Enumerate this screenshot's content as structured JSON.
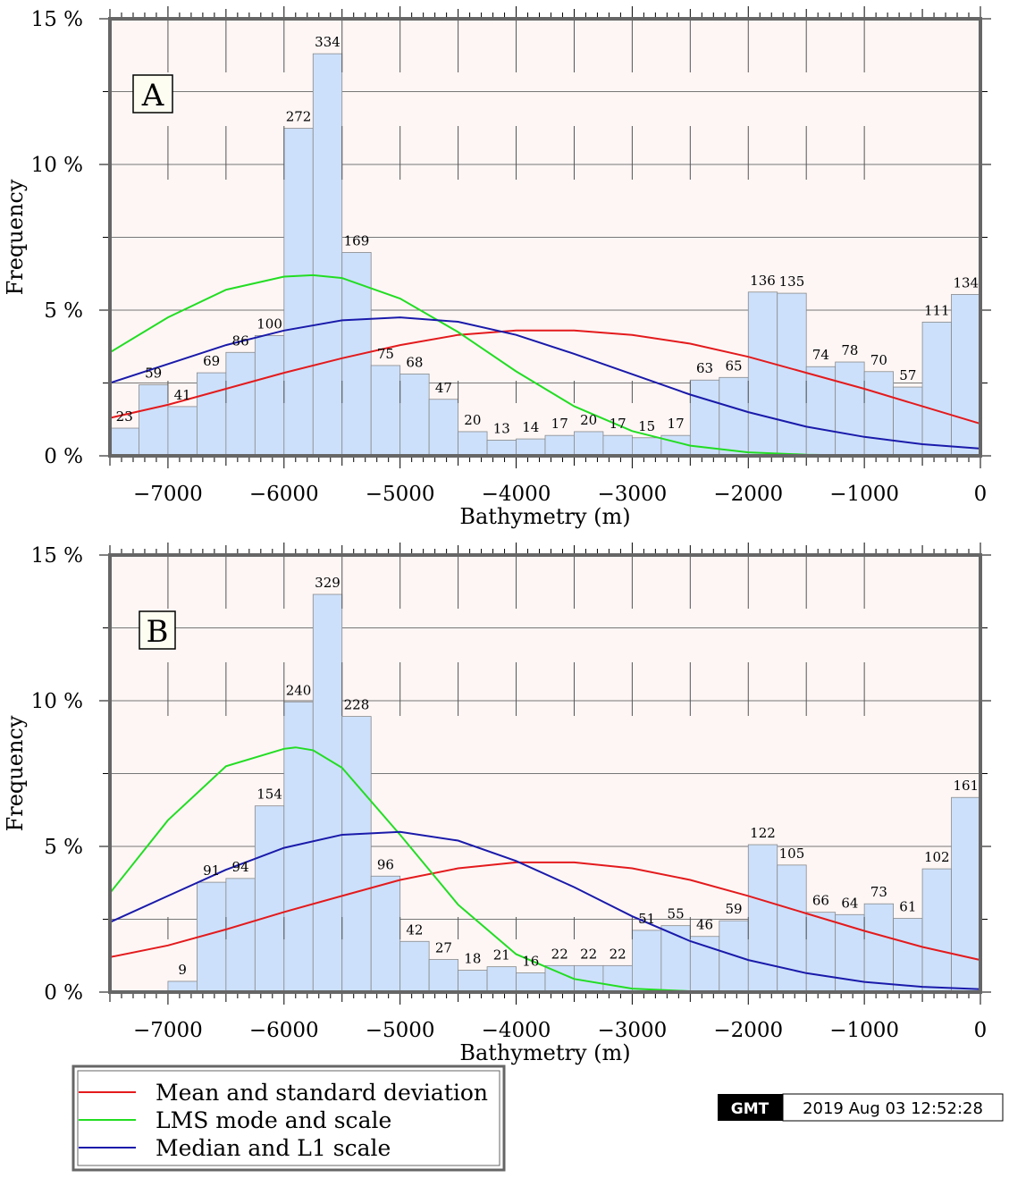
{
  "chart_data": [
    {
      "type": "bar",
      "panel_label": "A",
      "xlabel": "Bathymetry (m)",
      "ylabel": "Frequency",
      "xlim": [
        -7500,
        0
      ],
      "ylim": [
        0,
        15
      ],
      "bin_width": 250,
      "x_ticks": [
        -7000,
        -6000,
        -5000,
        -4000,
        -3000,
        -2000,
        -1000,
        0
      ],
      "x_tick_labels": [
        "−7000",
        "−6000",
        "−5000",
        "−4000",
        "−3000",
        "−2000",
        "−1000",
        "0"
      ],
      "y_ticks": [
        0,
        5,
        10,
        15
      ],
      "y_tick_labels": [
        "0 %",
        "5 %",
        "10 %",
        "15 %"
      ],
      "bin_starts": [
        -7500,
        -7250,
        -7000,
        -6750,
        -6500,
        -6250,
        -6000,
        -5750,
        -5500,
        -5250,
        -5000,
        -4750,
        -4500,
        -4250,
        -4000,
        -3750,
        -3500,
        -3250,
        -3000,
        -2750,
        -2500,
        -2250,
        -2000,
        -1750,
        -1500,
        -1250,
        -1000,
        -750,
        -500,
        -250
      ],
      "counts": [
        23,
        59,
        41,
        69,
        86,
        100,
        272,
        334,
        169,
        75,
        68,
        47,
        20,
        13,
        14,
        17,
        20,
        17,
        15,
        17,
        63,
        65,
        136,
        135,
        74,
        78,
        70,
        57,
        111,
        134
      ],
      "percent": [
        0.95,
        2.44,
        1.69,
        2.85,
        3.55,
        4.13,
        11.24,
        13.8,
        6.98,
        3.1,
        2.81,
        1.94,
        0.83,
        0.54,
        0.58,
        0.7,
        0.83,
        0.7,
        0.62,
        0.7,
        2.6,
        2.69,
        5.62,
        5.58,
        3.06,
        3.22,
        2.89,
        2.36,
        4.59,
        5.54
      ],
      "curves": [
        {
          "name": "Mean and standard deviation",
          "color": "#e41a1c",
          "x": [
            -7500,
            -7000,
            -6500,
            -6000,
            -5500,
            -5000,
            -4500,
            -4000,
            -3500,
            -3000,
            -2500,
            -2000,
            -1500,
            -1000,
            -500,
            0
          ],
          "y": [
            1.3,
            1.75,
            2.3,
            2.85,
            3.35,
            3.8,
            4.15,
            4.3,
            4.3,
            4.15,
            3.85,
            3.4,
            2.85,
            2.3,
            1.7,
            1.1
          ]
        },
        {
          "name": "LMS mode and scale",
          "color": "#22dd22",
          "x": [
            -7500,
            -7000,
            -6500,
            -6000,
            -5750,
            -5500,
            -5000,
            -4500,
            -4000,
            -3500,
            -3000,
            -2500,
            -2000,
            -1500,
            -1000,
            -500,
            0
          ],
          "y": [
            3.55,
            4.75,
            5.7,
            6.15,
            6.2,
            6.1,
            5.4,
            4.25,
            2.9,
            1.7,
            0.85,
            0.35,
            0.12,
            0.04,
            0.01,
            0,
            0
          ]
        },
        {
          "name": "Median and L1 scale",
          "color": "#1a1aaa",
          "x": [
            -7500,
            -7000,
            -6500,
            -6000,
            -5500,
            -5000,
            -4500,
            -4000,
            -3500,
            -3000,
            -2500,
            -2000,
            -1500,
            -1000,
            -500,
            0
          ],
          "y": [
            2.5,
            3.15,
            3.8,
            4.3,
            4.65,
            4.75,
            4.6,
            4.15,
            3.5,
            2.8,
            2.1,
            1.5,
            1.0,
            0.65,
            0.4,
            0.25
          ]
        }
      ]
    },
    {
      "type": "bar",
      "panel_label": "B",
      "xlabel": "Bathymetry (m)",
      "ylabel": "Frequency",
      "xlim": [
        -7500,
        0
      ],
      "ylim": [
        0,
        15
      ],
      "bin_width": 250,
      "x_ticks": [
        -7000,
        -6000,
        -5000,
        -4000,
        -3000,
        -2000,
        -1000,
        0
      ],
      "x_tick_labels": [
        "−7000",
        "−6000",
        "−5000",
        "−4000",
        "−3000",
        "−2000",
        "−1000",
        "0"
      ],
      "y_ticks": [
        0,
        5,
        10,
        15
      ],
      "y_tick_labels": [
        "0 %",
        "5 %",
        "10 %",
        "15 %"
      ],
      "bin_starts": [
        -7000,
        -6750,
        -6500,
        -6250,
        -6000,
        -5750,
        -5500,
        -5250,
        -5000,
        -4750,
        -4500,
        -4250,
        -4000,
        -3750,
        -3500,
        -3250,
        -3000,
        -2750,
        -2500,
        -2250,
        -2000,
        -1750,
        -1500,
        -1250,
        -1000,
        -750,
        -500,
        -250
      ],
      "counts": [
        9,
        91,
        94,
        154,
        240,
        329,
        228,
        96,
        42,
        27,
        18,
        21,
        16,
        22,
        22,
        22,
        51,
        55,
        46,
        59,
        122,
        105,
        66,
        64,
        73,
        61,
        102,
        161
      ],
      "percent": [
        0.37,
        3.77,
        3.9,
        6.39,
        9.96,
        13.65,
        9.46,
        3.98,
        1.74,
        1.12,
        0.75,
        0.87,
        0.66,
        0.91,
        0.91,
        0.91,
        2.12,
        2.28,
        1.91,
        2.45,
        5.06,
        4.36,
        2.74,
        2.66,
        3.03,
        2.53,
        4.23,
        6.68
      ],
      "curves": [
        {
          "name": "Mean and standard deviation",
          "color": "#e41a1c",
          "x": [
            -7500,
            -7000,
            -6500,
            -6000,
            -5500,
            -5000,
            -4500,
            -4000,
            -3500,
            -3000,
            -2500,
            -2000,
            -1500,
            -1000,
            -500,
            0
          ],
          "y": [
            1.2,
            1.6,
            2.15,
            2.75,
            3.3,
            3.85,
            4.25,
            4.45,
            4.45,
            4.25,
            3.85,
            3.3,
            2.7,
            2.1,
            1.55,
            1.1
          ]
        },
        {
          "name": "LMS mode and scale",
          "color": "#22dd22",
          "x": [
            -7500,
            -7000,
            -6500,
            -6000,
            -5900,
            -5750,
            -5500,
            -5000,
            -4500,
            -4000,
            -3500,
            -3000,
            -2500,
            -2000,
            -1500,
            -1000,
            0
          ],
          "y": [
            3.4,
            5.9,
            7.75,
            8.35,
            8.4,
            8.3,
            7.7,
            5.4,
            3.0,
            1.3,
            0.45,
            0.12,
            0.03,
            0.01,
            0,
            0,
            0
          ]
        },
        {
          "name": "Median and L1 scale",
          "color": "#1a1aaa",
          "x": [
            -7500,
            -7000,
            -6500,
            -6000,
            -5500,
            -5000,
            -4500,
            -4000,
            -3500,
            -3000,
            -2500,
            -2000,
            -1500,
            -1000,
            -500,
            0
          ],
          "y": [
            2.4,
            3.3,
            4.2,
            4.95,
            5.4,
            5.5,
            5.2,
            4.5,
            3.6,
            2.6,
            1.75,
            1.1,
            0.65,
            0.35,
            0.18,
            0.1
          ]
        }
      ]
    }
  ],
  "legend": {
    "items": [
      {
        "label": "Mean and standard deviation",
        "color": "#e41a1c"
      },
      {
        "label": "LMS mode and scale",
        "color": "#22dd22"
      },
      {
        "label": "Median and L1 scale",
        "color": "#1a1aaa"
      }
    ]
  },
  "timestamp": {
    "logo": "GMT",
    "text": "2019 Aug 03 12:52:28"
  }
}
